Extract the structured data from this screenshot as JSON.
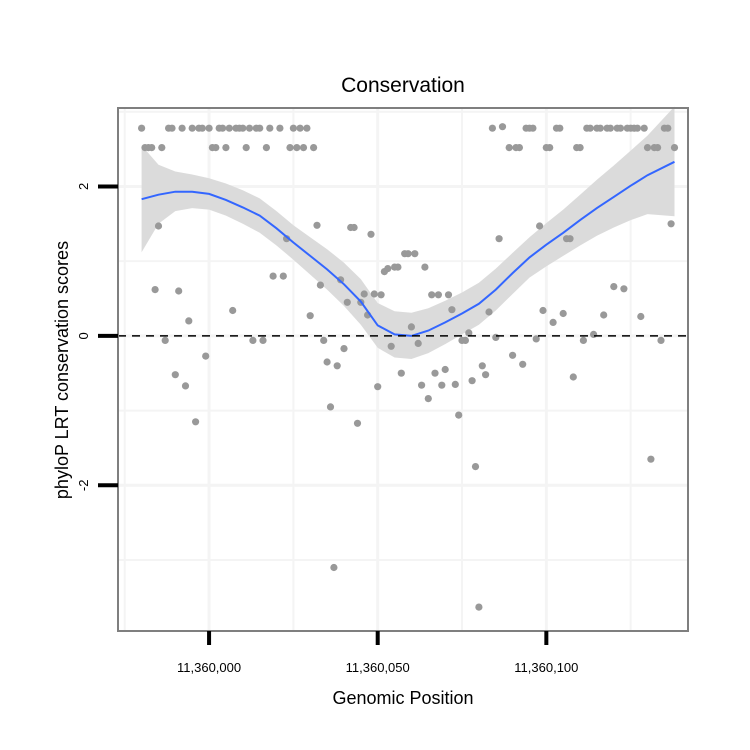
{
  "chart_data": {
    "type": "scatter",
    "title": "Conservation",
    "xlabel": "Genomic Position",
    "ylabel": "phyloP LRT conservation scores",
    "xlim": [
      11359973,
      11360142
    ],
    "ylim": [
      -3.95,
      3.05
    ],
    "x_ticks": [
      {
        "value": 11360000,
        "label": "11,360,000"
      },
      {
        "value": 11360050,
        "label": "11,360,050"
      },
      {
        "value": 11360100,
        "label": "11,360,100"
      }
    ],
    "y_ticks": [
      {
        "value": 2,
        "label": "2"
      },
      {
        "value": 0,
        "label": "0"
      },
      {
        "value": -2,
        "label": "-2"
      }
    ],
    "x_minor_grid": [
      11359975,
      11360025,
      11360075,
      11360125
    ],
    "y_minor_grid": [
      3,
      1,
      -1,
      -3
    ],
    "reference_line": {
      "y": 0,
      "style": "dashed"
    },
    "colors": {
      "points": "#999999",
      "smooth_line": "#3366ff",
      "confidence_band": "#d9d9d9",
      "panel_border": "#7f7f7f",
      "grid": "#f4f4f4"
    },
    "series": [
      {
        "name": "phyloP scores",
        "points": [
          [
            11359980,
            2.78
          ],
          [
            11359981,
            2.52
          ],
          [
            11359982,
            2.52
          ],
          [
            11359983,
            2.52
          ],
          [
            11359984,
            0.62
          ],
          [
            11359985,
            1.47
          ],
          [
            11359986,
            2.52
          ],
          [
            11359987,
            -0.06
          ],
          [
            11359988,
            2.78
          ],
          [
            11359989,
            2.78
          ],
          [
            11359990,
            -0.52
          ],
          [
            11359991,
            0.6
          ],
          [
            11359992,
            2.78
          ],
          [
            11359993,
            -0.67
          ],
          [
            11359994,
            0.2
          ],
          [
            11359995,
            2.78
          ],
          [
            11359996,
            -1.15
          ],
          [
            11359997,
            2.78
          ],
          [
            11359998,
            2.78
          ],
          [
            11359999,
            -0.27
          ],
          [
            11360000,
            2.78
          ],
          [
            11360001,
            2.52
          ],
          [
            11360002,
            2.52
          ],
          [
            11360003,
            2.78
          ],
          [
            11360004,
            2.78
          ],
          [
            11360005,
            2.52
          ],
          [
            11360006,
            2.78
          ],
          [
            11360007,
            0.34
          ],
          [
            11360008,
            2.78
          ],
          [
            11360009,
            2.78
          ],
          [
            11360010,
            2.78
          ],
          [
            11360011,
            2.52
          ],
          [
            11360012,
            2.78
          ],
          [
            11360013,
            -0.06
          ],
          [
            11360014,
            2.78
          ],
          [
            11360015,
            2.78
          ],
          [
            11360016,
            -0.06
          ],
          [
            11360017,
            2.52
          ],
          [
            11360018,
            2.78
          ],
          [
            11360019,
            0.8
          ],
          [
            11360021,
            2.78
          ],
          [
            11360022,
            0.8
          ],
          [
            11360023,
            1.3
          ],
          [
            11360024,
            2.52
          ],
          [
            11360025,
            2.78
          ],
          [
            11360026,
            2.52
          ],
          [
            11360027,
            2.78
          ],
          [
            11360028,
            2.52
          ],
          [
            11360029,
            2.78
          ],
          [
            11360030,
            0.27
          ],
          [
            11360031,
            2.52
          ],
          [
            11360032,
            1.48
          ],
          [
            11360033,
            0.68
          ],
          [
            11360034,
            -0.06
          ],
          [
            11360035,
            -0.35
          ],
          [
            11360036,
            -0.95
          ],
          [
            11360037,
            -3.1
          ],
          [
            11360038,
            -0.4
          ],
          [
            11360039,
            0.75
          ],
          [
            11360040,
            -0.17
          ],
          [
            11360041,
            0.45
          ],
          [
            11360042,
            1.45
          ],
          [
            11360043,
            1.45
          ],
          [
            11360044,
            -1.17
          ],
          [
            11360045,
            0.45
          ],
          [
            11360046,
            0.56
          ],
          [
            11360047,
            0.28
          ],
          [
            11360048,
            1.36
          ],
          [
            11360049,
            0.56
          ],
          [
            11360050,
            -0.68
          ],
          [
            11360051,
            0.55
          ],
          [
            11360052,
            0.86
          ],
          [
            11360053,
            0.9
          ],
          [
            11360054,
            -0.14
          ],
          [
            11360055,
            0.92
          ],
          [
            11360056,
            0.92
          ],
          [
            11360057,
            -0.5
          ],
          [
            11360058,
            1.1
          ],
          [
            11360059,
            1.1
          ],
          [
            11360060,
            0.12
          ],
          [
            11360061,
            1.1
          ],
          [
            11360062,
            -0.1
          ],
          [
            11360063,
            -0.66
          ],
          [
            11360064,
            0.92
          ],
          [
            11360065,
            -0.84
          ],
          [
            11360066,
            0.55
          ],
          [
            11360067,
            -0.5
          ],
          [
            11360068,
            0.55
          ],
          [
            11360069,
            -0.66
          ],
          [
            11360070,
            -0.45
          ],
          [
            11360071,
            0.55
          ],
          [
            11360072,
            0.35
          ],
          [
            11360073,
            -0.65
          ],
          [
            11360074,
            -1.06
          ],
          [
            11360075,
            -0.06
          ],
          [
            11360076,
            -0.06
          ],
          [
            11360077,
            0.04
          ],
          [
            11360078,
            -0.6
          ],
          [
            11360079,
            -1.75
          ],
          [
            11360080,
            -3.63
          ],
          [
            11360081,
            -0.4
          ],
          [
            11360082,
            -0.52
          ],
          [
            11360083,
            0.32
          ],
          [
            11360084,
            2.78
          ],
          [
            11360085,
            -0.02
          ],
          [
            11360086,
            1.3
          ],
          [
            11360087,
            2.8
          ],
          [
            11360089,
            2.52
          ],
          [
            11360090,
            -0.26
          ],
          [
            11360091,
            2.52
          ],
          [
            11360092,
            2.52
          ],
          [
            11360093,
            -0.38
          ],
          [
            11360094,
            2.78
          ],
          [
            11360095,
            2.78
          ],
          [
            11360096,
            2.78
          ],
          [
            11360097,
            -0.04
          ],
          [
            11360098,
            1.47
          ],
          [
            11360099,
            0.34
          ],
          [
            11360100,
            2.52
          ],
          [
            11360101,
            2.52
          ],
          [
            11360102,
            0.18
          ],
          [
            11360103,
            2.78
          ],
          [
            11360104,
            2.78
          ],
          [
            11360105,
            0.3
          ],
          [
            11360106,
            1.3
          ],
          [
            11360107,
            1.3
          ],
          [
            11360108,
            -0.55
          ],
          [
            11360109,
            2.52
          ],
          [
            11360110,
            2.52
          ],
          [
            11360111,
            -0.06
          ],
          [
            11360112,
            2.78
          ],
          [
            11360113,
            2.78
          ],
          [
            11360114,
            0.02
          ],
          [
            11360115,
            2.78
          ],
          [
            11360116,
            2.78
          ],
          [
            11360117,
            0.28
          ],
          [
            11360118,
            2.78
          ],
          [
            11360119,
            2.78
          ],
          [
            11360120,
            0.66
          ],
          [
            11360121,
            2.78
          ],
          [
            11360122,
            2.78
          ],
          [
            11360123,
            0.63
          ],
          [
            11360124,
            2.78
          ],
          [
            11360125,
            2.78
          ],
          [
            11360126,
            2.78
          ],
          [
            11360127,
            2.78
          ],
          [
            11360128,
            0.26
          ],
          [
            11360129,
            2.78
          ],
          [
            11360130,
            2.52
          ],
          [
            11360131,
            -1.65
          ],
          [
            11360132,
            2.52
          ],
          [
            11360133,
            2.52
          ],
          [
            11360134,
            -0.06
          ],
          [
            11360135,
            2.78
          ],
          [
            11360136,
            2.78
          ],
          [
            11360137,
            1.5
          ],
          [
            11360138,
            2.52
          ]
        ]
      },
      {
        "name": "loess smooth",
        "type": "line",
        "points": [
          [
            11359980,
            1.83
          ],
          [
            11359985,
            1.89
          ],
          [
            11359990,
            1.93
          ],
          [
            11359995,
            1.93
          ],
          [
            11360000,
            1.9
          ],
          [
            11360005,
            1.82
          ],
          [
            11360010,
            1.72
          ],
          [
            11360015,
            1.61
          ],
          [
            11360020,
            1.44
          ],
          [
            11360025,
            1.25
          ],
          [
            11360030,
            1.07
          ],
          [
            11360035,
            0.89
          ],
          [
            11360040,
            0.69
          ],
          [
            11360045,
            0.46
          ],
          [
            11360050,
            0.14
          ],
          [
            11360055,
            0.02
          ],
          [
            11360060,
            0.0
          ],
          [
            11360065,
            0.07
          ],
          [
            11360070,
            0.18
          ],
          [
            11360075,
            0.3
          ],
          [
            11360080,
            0.43
          ],
          [
            11360085,
            0.62
          ],
          [
            11360090,
            0.84
          ],
          [
            11360095,
            1.05
          ],
          [
            11360100,
            1.22
          ],
          [
            11360105,
            1.38
          ],
          [
            11360110,
            1.55
          ],
          [
            11360115,
            1.71
          ],
          [
            11360120,
            1.86
          ],
          [
            11360125,
            2.01
          ],
          [
            11360130,
            2.15
          ],
          [
            11360138,
            2.33
          ]
        ],
        "band_upper": [
          2.55,
          2.29,
          2.2,
          2.16,
          2.11,
          2.04,
          1.95,
          1.84,
          1.67,
          1.48,
          1.32,
          1.16,
          0.98,
          0.76,
          0.44,
          0.33,
          0.31,
          0.37,
          0.47,
          0.58,
          0.71,
          0.9,
          1.11,
          1.32,
          1.51,
          1.69,
          1.89,
          2.09,
          2.28,
          2.48,
          2.68,
          3.07
        ],
        "band_lower": [
          1.12,
          1.5,
          1.67,
          1.71,
          1.69,
          1.61,
          1.5,
          1.38,
          1.21,
          1.02,
          0.82,
          0.62,
          0.4,
          0.15,
          -0.16,
          -0.29,
          -0.31,
          -0.23,
          -0.11,
          0.02,
          0.15,
          0.34,
          0.56,
          0.78,
          0.93,
          1.07,
          1.21,
          1.34,
          1.45,
          1.55,
          1.63,
          1.6
        ]
      }
    ]
  }
}
